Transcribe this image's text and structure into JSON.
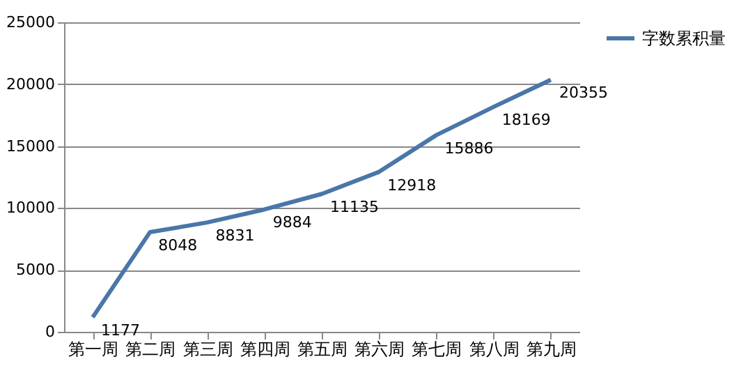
{
  "chart_data": {
    "type": "line",
    "categories": [
      "第一周",
      "第二周",
      "第三周",
      "第四周",
      "第五周",
      "第六周",
      "第七周",
      "第八周",
      "第九周"
    ],
    "series": [
      {
        "name": "字数累积量",
        "color": "#4a76a8",
        "values": [
          1177,
          8048,
          8831,
          9884,
          11135,
          12918,
          15886,
          18169,
          20355
        ]
      }
    ],
    "ylim": [
      0,
      25000
    ],
    "yticks": [
      0,
      5000,
      10000,
      15000,
      20000,
      25000
    ],
    "grid": "y",
    "legend": "right",
    "data_labels": true,
    "marker": "none",
    "line_style": "solid"
  }
}
